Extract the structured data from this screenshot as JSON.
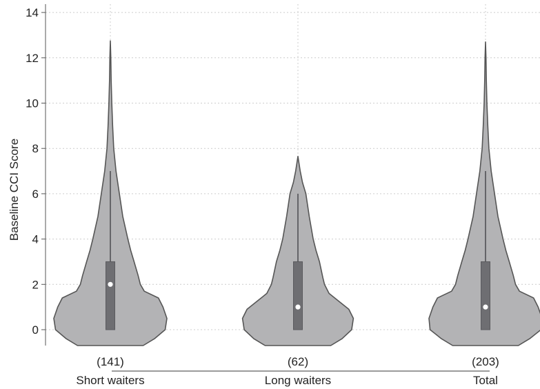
{
  "chart_data": {
    "type": "violin",
    "title": "",
    "xlabel": "",
    "ylabel": "Baseline CCI Score",
    "ylim": [
      -0.7,
      14
    ],
    "yticks": [
      0,
      2,
      4,
      6,
      8,
      10,
      12,
      14
    ],
    "grid": true,
    "colors": {
      "violin_fill": "#b3b3b5",
      "violin_stroke": "#555555",
      "box_fill": "#6e6e72",
      "median_marker": "#ffffff",
      "grid": "#cccccc"
    },
    "groups": [
      {
        "label": "Short waiters",
        "count_label": "(141)",
        "box": {
          "whisker_low": 0,
          "q1": 0,
          "median": 2,
          "q3": 3,
          "whisker_high": 7
        },
        "profile": [
          [
            -0.7,
            0.58
          ],
          [
            -0.4,
            0.78
          ],
          [
            0,
            0.97
          ],
          [
            0.5,
            1.0
          ],
          [
            1.0,
            0.93
          ],
          [
            1.4,
            0.85
          ],
          [
            1.7,
            0.6
          ],
          [
            2.0,
            0.53
          ],
          [
            2.4,
            0.49
          ],
          [
            3.0,
            0.42
          ],
          [
            3.5,
            0.36
          ],
          [
            4.0,
            0.31
          ],
          [
            5.0,
            0.22
          ],
          [
            6.0,
            0.16
          ],
          [
            7.0,
            0.1
          ],
          [
            8.0,
            0.06
          ],
          [
            9.0,
            0.04
          ],
          [
            10.0,
            0.025
          ],
          [
            11.0,
            0.015
          ],
          [
            12.0,
            0.008
          ],
          [
            12.75,
            0.0
          ]
        ]
      },
      {
        "label": "Long waiters",
        "count_label": "(62)",
        "box": {
          "whisker_low": 0,
          "q1": 0,
          "median": 1,
          "q3": 3,
          "whisker_high": 6
        },
        "profile": [
          [
            -0.7,
            0.58
          ],
          [
            -0.4,
            0.78
          ],
          [
            0,
            0.95
          ],
          [
            0.5,
            0.98
          ],
          [
            0.9,
            0.9
          ],
          [
            1.3,
            0.7
          ],
          [
            1.6,
            0.55
          ],
          [
            2.0,
            0.47
          ],
          [
            2.3,
            0.44
          ],
          [
            3.0,
            0.38
          ],
          [
            3.5,
            0.32
          ],
          [
            4.0,
            0.27
          ],
          [
            5.0,
            0.2
          ],
          [
            6.0,
            0.14
          ],
          [
            6.5,
            0.08
          ],
          [
            7.0,
            0.04
          ],
          [
            7.65,
            0.0
          ]
        ]
      },
      {
        "label": "Total",
        "count_label": "(203)",
        "box": {
          "whisker_low": 0,
          "q1": 0,
          "median": 1,
          "q3": 3,
          "whisker_high": 7
        },
        "profile": [
          [
            -0.7,
            0.58
          ],
          [
            -0.4,
            0.78
          ],
          [
            0,
            0.98
          ],
          [
            0.5,
            1.0
          ],
          [
            1.0,
            0.93
          ],
          [
            1.4,
            0.85
          ],
          [
            1.7,
            0.6
          ],
          [
            2.0,
            0.53
          ],
          [
            2.4,
            0.49
          ],
          [
            3.0,
            0.42
          ],
          [
            3.5,
            0.36
          ],
          [
            4.0,
            0.31
          ],
          [
            5.0,
            0.22
          ],
          [
            6.0,
            0.16
          ],
          [
            7.0,
            0.1
          ],
          [
            8.0,
            0.06
          ],
          [
            9.0,
            0.04
          ],
          [
            10.0,
            0.025
          ],
          [
            11.0,
            0.015
          ],
          [
            12.0,
            0.008
          ],
          [
            12.7,
            0.0
          ]
        ]
      }
    ]
  }
}
